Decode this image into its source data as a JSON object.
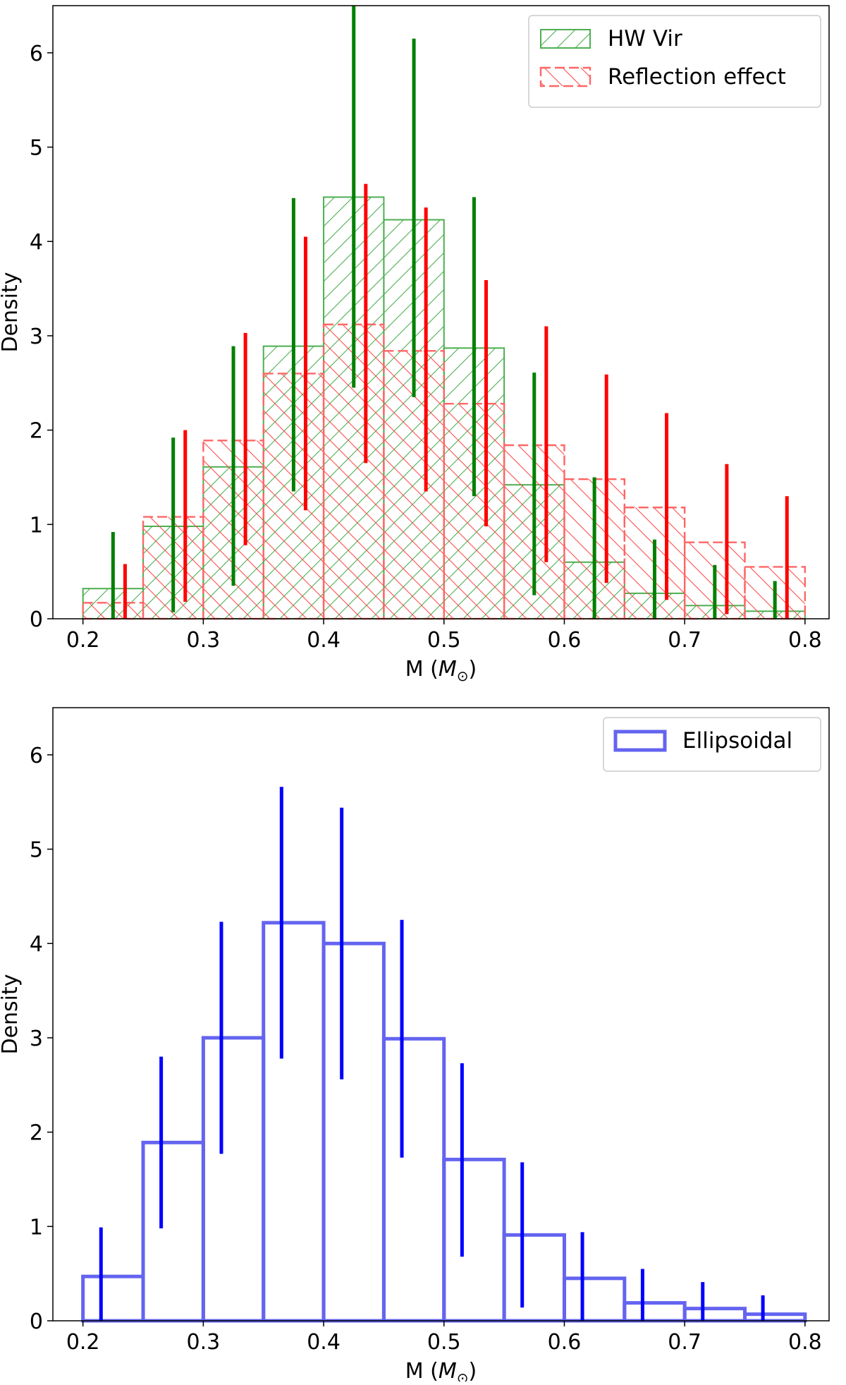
{
  "chart_data": [
    {
      "type": "histogram",
      "xlabel": "M (",
      "xlabel_symbol": "M",
      "xlabel_sub": "⊙",
      "xlabel_close": ")",
      "ylabel": "Density",
      "xlim": [
        0.175,
        0.82
      ],
      "ylim": [
        0,
        6.5
      ],
      "xticks": [
        "0.2",
        "0.3",
        "0.4",
        "0.5",
        "0.6",
        "0.7",
        "0.8"
      ],
      "yticks": [
        "0",
        "1",
        "2",
        "3",
        "4",
        "5",
        "6"
      ],
      "legend_position": "top-right",
      "bin_edges": [
        0.2,
        0.25,
        0.3,
        0.35,
        0.4,
        0.45,
        0.5,
        0.55,
        0.6,
        0.65,
        0.7,
        0.75,
        0.8
      ],
      "series": [
        {
          "name": "HW Vir",
          "color": "#008000",
          "fill_color": "#4CAF50",
          "style": "solid-hatched",
          "values": [
            0.32,
            0.98,
            1.61,
            2.89,
            4.47,
            4.23,
            2.87,
            1.42,
            0.6,
            0.27,
            0.14,
            0.08
          ],
          "err_x": [
            0.225,
            0.275,
            0.325,
            0.375,
            0.425,
            0.475,
            0.525,
            0.575,
            0.625,
            0.675,
            0.725,
            0.775
          ],
          "err_low": [
            0,
            0.07,
            0.35,
            1.35,
            2.45,
            2.35,
            1.3,
            0.25,
            0,
            0,
            0,
            0
          ],
          "err_high": [
            0.92,
            1.92,
            2.89,
            4.46,
            6.5,
            6.15,
            4.47,
            2.61,
            1.5,
            0.84,
            0.57,
            0.4
          ]
        },
        {
          "name": "Reflection effect",
          "color": "#ff0000",
          "fill_color": "#ff6666",
          "style": "dashed-hatched",
          "values": [
            0.17,
            1.08,
            1.89,
            2.6,
            3.12,
            2.84,
            2.28,
            1.84,
            1.48,
            1.18,
            0.81,
            0.55
          ],
          "err_x": [
            0.235,
            0.285,
            0.335,
            0.385,
            0.435,
            0.485,
            0.535,
            0.585,
            0.635,
            0.685,
            0.735,
            0.785
          ],
          "err_low": [
            0,
            0.18,
            0.78,
            1.15,
            1.65,
            1.35,
            0.98,
            0.6,
            0.38,
            0.2,
            0.05,
            0
          ],
          "err_high": [
            0.58,
            2.0,
            3.03,
            4.05,
            4.61,
            4.36,
            3.59,
            3.1,
            2.59,
            2.18,
            1.64,
            1.3
          ]
        }
      ]
    },
    {
      "type": "histogram",
      "xlabel": "M (",
      "xlabel_symbol": "M",
      "xlabel_sub": "⊙",
      "xlabel_close": ")",
      "ylabel": "Density",
      "xlim": [
        0.175,
        0.82
      ],
      "ylim": [
        0,
        6.5
      ],
      "xticks": [
        "0.2",
        "0.3",
        "0.4",
        "0.5",
        "0.6",
        "0.7",
        "0.8"
      ],
      "yticks": [
        "0",
        "1",
        "2",
        "3",
        "4",
        "5",
        "6"
      ],
      "legend_position": "top-right",
      "bin_edges": [
        0.2,
        0.25,
        0.3,
        0.35,
        0.4,
        0.45,
        0.5,
        0.55,
        0.6,
        0.65,
        0.7,
        0.75,
        0.8
      ],
      "series": [
        {
          "name": "Ellipsoidal",
          "color": "#0000ff",
          "fill_color": "#6464f0",
          "style": "step-outline",
          "values": [
            0.47,
            1.89,
            3.0,
            4.22,
            4.0,
            2.99,
            1.71,
            0.91,
            0.45,
            0.19,
            0.13,
            0.07
          ],
          "err_x": [
            0.215,
            0.265,
            0.315,
            0.365,
            0.415,
            0.465,
            0.515,
            0.565,
            0.615,
            0.665,
            0.715,
            0.765
          ],
          "err_low": [
            0,
            0.98,
            1.77,
            2.78,
            2.56,
            1.73,
            0.68,
            0.14,
            0,
            0,
            0,
            0
          ],
          "err_high": [
            0.99,
            2.8,
            4.23,
            5.66,
            5.44,
            4.25,
            2.73,
            1.68,
            0.94,
            0.55,
            0.41,
            0.27
          ]
        }
      ]
    }
  ]
}
